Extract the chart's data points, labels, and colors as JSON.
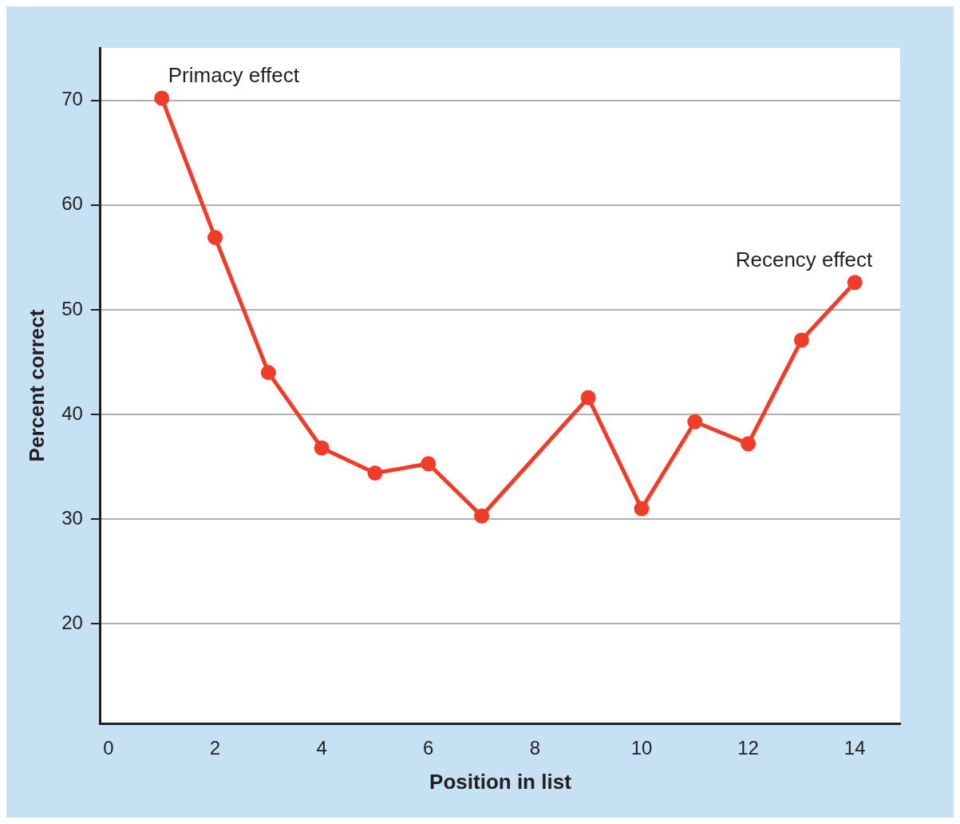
{
  "chart_data": {
    "type": "line",
    "xlabel": "Position in list",
    "ylabel": "Percent correct",
    "x": [
      1,
      2,
      3,
      4,
      5,
      6,
      7,
      9,
      10,
      11,
      12,
      13,
      14
    ],
    "series": [
      {
        "color": "#f03c28",
        "values": [
          70.2,
          56.9,
          44,
          36.8,
          34.4,
          35.3,
          30.3,
          41.6,
          31,
          39.3,
          37.2,
          47.1,
          52.6
        ]
      }
    ],
    "xlim": [
      -0.15,
      14.85
    ],
    "xticks": [
      0,
      2,
      4,
      6,
      8,
      10,
      12,
      14
    ],
    "ylim": [
      10.5,
      75
    ],
    "yticks": [
      20,
      30,
      40,
      50,
      60,
      70
    ],
    "grid": "y",
    "legend": false,
    "marker": "circle",
    "line_style": "solid",
    "annotations": [
      {
        "text": "Primacy effect",
        "x": 1,
        "y": 70.2
      },
      {
        "text": "Recency effect",
        "x": 14,
        "y": 52.6
      }
    ]
  }
}
